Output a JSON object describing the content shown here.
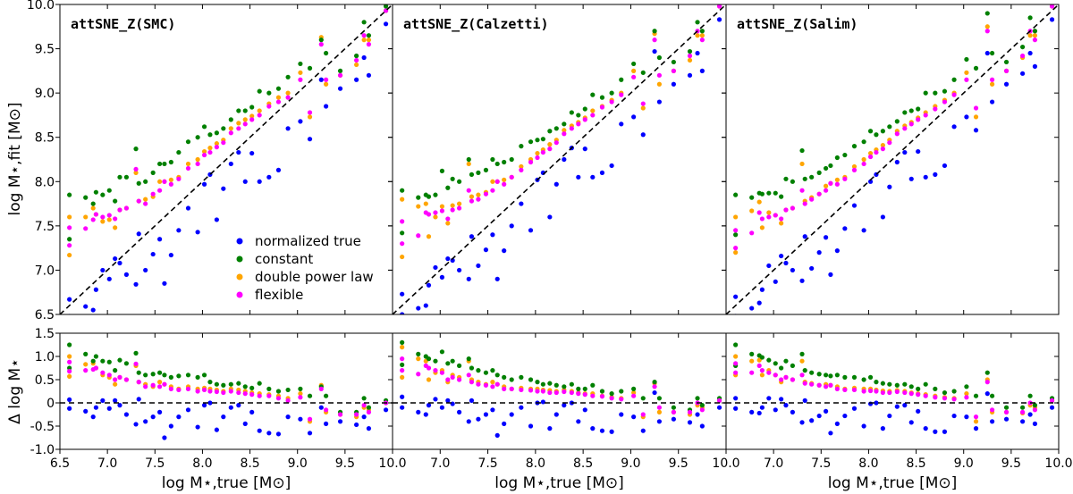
{
  "chart_data": {
    "type": "scatter",
    "xlabel": "log M⋆,true [M⊙]",
    "ylabel_top": "log M⋆,fit [M⊙]",
    "ylabel_bottom": "Δ log M⋆",
    "xlim": [
      6.5,
      10.0
    ],
    "ylim_top": [
      6.5,
      10.0
    ],
    "ylim_bottom": [
      -1.0,
      1.5
    ],
    "xticks": [
      "6.5",
      "7.0",
      "7.5",
      "8.0",
      "8.5",
      "9.0",
      "9.5",
      "10.0"
    ],
    "yticks_top": [
      "6.5",
      "7.0",
      "7.5",
      "8.0",
      "8.5",
      "9.0",
      "9.5",
      "10.0"
    ],
    "yticks_bottom": [
      "-1.0",
      "-0.5",
      "0",
      "0.5",
      "1.0",
      "1.5"
    ],
    "reference_lines": "dashed black: y = x (top), Δ = 0 (bottom)",
    "legend_placement": "lower-right of first panel",
    "colors": {
      "normalized true": "#0000ff",
      "constant": "#008000",
      "double power law": "#ffa500",
      "flexible": "#ff00ff"
    },
    "series_names": [
      "normalized true",
      "constant",
      "double power law",
      "flexible"
    ],
    "x": [
      6.6,
      6.6,
      6.77,
      6.85,
      6.88,
      6.95,
      7.02,
      7.08,
      7.13,
      7.2,
      7.3,
      7.33,
      7.4,
      7.48,
      7.55,
      7.6,
      7.67,
      7.75,
      7.85,
      7.95,
      8.02,
      8.08,
      8.15,
      8.22,
      8.3,
      8.38,
      8.45,
      8.52,
      8.6,
      8.7,
      8.8,
      8.9,
      9.03,
      9.13,
      9.25,
      9.3,
      9.45,
      9.62,
      9.7,
      9.75,
      9.93
    ],
    "panels": [
      {
        "title": "attSNE_Z(SMC)",
        "delta": {
          "normalized true": [
            0.07,
            -0.12,
            -0.18,
            -0.3,
            -0.1,
            0.05,
            -0.12,
            0.05,
            -0.05,
            -0.25,
            -0.46,
            0.08,
            -0.4,
            -0.3,
            -0.2,
            -0.75,
            -0.5,
            -0.3,
            -0.15,
            -0.52,
            -0.05,
            0.0,
            -0.58,
            -0.3,
            -0.1,
            -0.05,
            -0.45,
            -0.2,
            -0.6,
            -0.65,
            -0.67,
            -0.3,
            -0.35,
            -0.65,
            -0.1,
            -0.45,
            -0.4,
            -0.47,
            -0.3,
            -0.55,
            -0.15
          ],
          "constant": [
            1.25,
            0.75,
            1.05,
            0.9,
            1.0,
            0.9,
            0.88,
            0.7,
            0.92,
            0.85,
            1.07,
            0.65,
            0.6,
            0.62,
            0.65,
            0.6,
            0.55,
            0.58,
            0.6,
            0.55,
            0.6,
            0.45,
            0.4,
            0.38,
            0.4,
            0.42,
            0.35,
            0.32,
            0.42,
            0.3,
            0.25,
            0.28,
            0.3,
            0.15,
            0.35,
            0.15,
            -0.2,
            -0.2,
            0.1,
            -0.1,
            0.05
          ],
          "double power law": [
            1.0,
            0.57,
            0.83,
            0.85,
            0.75,
            0.6,
            0.55,
            0.4,
            0.55,
            0.5,
            0.8,
            0.45,
            0.4,
            0.35,
            0.45,
            0.4,
            0.35,
            0.3,
            0.35,
            0.3,
            0.32,
            0.3,
            0.28,
            0.25,
            0.3,
            0.28,
            0.25,
            0.22,
            0.2,
            0.18,
            0.15,
            0.1,
            0.2,
            -0.4,
            0.38,
            -0.2,
            -0.25,
            -0.3,
            -0.1,
            -0.15,
            0.0
          ],
          "flexible": [
            0.88,
            0.68,
            0.7,
            0.72,
            0.75,
            0.65,
            0.6,
            0.5,
            0.55,
            0.5,
            0.84,
            0.45,
            0.35,
            0.38,
            0.35,
            0.4,
            0.3,
            0.28,
            0.3,
            0.25,
            0.28,
            0.25,
            0.24,
            0.22,
            0.25,
            0.22,
            0.2,
            0.18,
            0.15,
            0.15,
            0.1,
            0.05,
            0.12,
            -0.35,
            0.3,
            -0.15,
            -0.25,
            -0.25,
            -0.05,
            -0.2,
            0.0
          ]
        }
      },
      {
        "title": "attSNE_Z(Calzetti)",
        "delta": {
          "normalized true": [
            0.13,
            -0.1,
            -0.2,
            -0.25,
            -0.05,
            0.08,
            -0.1,
            0.05,
            -0.02,
            -0.2,
            -0.4,
            0.05,
            -0.35,
            -0.25,
            -0.15,
            -0.7,
            -0.45,
            -0.25,
            -0.1,
            -0.5,
            0.0,
            0.02,
            -0.55,
            -0.25,
            -0.05,
            0.0,
            -0.4,
            -0.15,
            -0.55,
            -0.6,
            -0.62,
            -0.25,
            -0.3,
            -0.6,
            0.22,
            -0.4,
            -0.35,
            -0.42,
            -0.25,
            -0.5,
            -0.1
          ],
          "constant": [
            1.3,
            0.82,
            1.05,
            1.0,
            0.95,
            0.9,
            1.1,
            0.85,
            0.9,
            0.8,
            0.95,
            0.75,
            0.7,
            0.65,
            0.7,
            0.6,
            0.55,
            0.5,
            0.55,
            0.5,
            0.45,
            0.4,
            0.42,
            0.38,
            0.35,
            0.4,
            0.3,
            0.3,
            0.38,
            0.25,
            0.2,
            0.25,
            0.3,
            0.1,
            0.45,
            0.1,
            -0.1,
            -0.15,
            0.1,
            -0.05,
            0.1
          ],
          "double power law": [
            1.2,
            0.55,
            0.95,
            0.9,
            0.5,
            0.65,
            0.7,
            0.45,
            0.6,
            0.55,
            0.9,
            0.5,
            0.45,
            0.4,
            0.45,
            0.4,
            0.35,
            0.3,
            0.32,
            0.3,
            0.3,
            0.28,
            0.27,
            0.25,
            0.28,
            0.25,
            0.22,
            0.2,
            0.2,
            0.15,
            0.12,
            0.1,
            0.22,
            -0.3,
            0.42,
            -0.2,
            -0.2,
            -0.25,
            -0.05,
            -0.1,
            0.05
          ],
          "flexible": [
            0.95,
            0.7,
            0.62,
            0.8,
            0.75,
            0.7,
            0.65,
            0.5,
            0.55,
            0.5,
            0.6,
            0.45,
            0.4,
            0.38,
            0.35,
            0.4,
            0.3,
            0.3,
            0.28,
            0.27,
            0.25,
            0.25,
            0.22,
            0.22,
            0.24,
            0.22,
            0.2,
            0.18,
            0.15,
            0.14,
            0.1,
            0.08,
            0.15,
            -0.25,
            0.35,
            -0.1,
            -0.2,
            -0.2,
            0.0,
            -0.15,
            0.05
          ]
        }
      },
      {
        "title": "attSNE_Z(Salim)",
        "delta": {
          "normalized true": [
            0.1,
            -0.12,
            -0.2,
            -0.22,
            -0.1,
            0.1,
            -0.15,
            0.08,
            -0.05,
            -0.2,
            -0.42,
            0.05,
            -0.38,
            -0.28,
            -0.18,
            -0.65,
            -0.45,
            -0.28,
            -0.12,
            -0.5,
            -0.02,
            0.0,
            -0.55,
            -0.28,
            -0.08,
            -0.05,
            -0.42,
            -0.18,
            -0.55,
            -0.62,
            -0.62,
            -0.28,
            -0.3,
            -0.55,
            0.2,
            -0.4,
            -0.35,
            -0.4,
            -0.25,
            -0.45,
            -0.1
          ],
          "constant": [
            1.25,
            0.8,
            1.05,
            1.02,
            0.98,
            0.92,
            0.85,
            0.75,
            0.9,
            0.8,
            1.05,
            0.7,
            0.65,
            0.62,
            0.6,
            0.58,
            0.6,
            0.55,
            0.55,
            0.5,
            0.55,
            0.45,
            0.42,
            0.4,
            0.38,
            0.4,
            0.35,
            0.3,
            0.4,
            0.3,
            0.22,
            0.25,
            0.35,
            0.15,
            0.65,
            0.15,
            -0.1,
            -0.1,
            0.15,
            -0.05,
            0.1
          ],
          "double power law": [
            1.0,
            0.6,
            0.9,
            0.92,
            0.6,
            0.7,
            0.6,
            0.45,
            0.55,
            0.5,
            0.9,
            0.45,
            0.42,
            0.38,
            0.4,
            0.38,
            0.35,
            0.3,
            0.32,
            0.3,
            0.3,
            0.28,
            0.26,
            0.25,
            0.27,
            0.25,
            0.22,
            0.2,
            0.18,
            0.15,
            0.12,
            0.1,
            0.2,
            -0.4,
            0.5,
            -0.2,
            -0.2,
            -0.22,
            -0.05,
            -0.1,
            0.05
          ],
          "flexible": [
            0.85,
            0.65,
            0.65,
            0.8,
            0.7,
            0.65,
            0.6,
            0.5,
            0.55,
            0.5,
            0.6,
            0.42,
            0.4,
            0.38,
            0.35,
            0.38,
            0.3,
            0.28,
            0.28,
            0.25,
            0.26,
            0.25,
            0.22,
            0.22,
            0.24,
            0.22,
            0.2,
            0.18,
            0.15,
            0.12,
            0.1,
            0.08,
            0.12,
            -0.3,
            0.45,
            -0.15,
            -0.2,
            -0.2,
            0.0,
            -0.15,
            0.05
          ]
        }
      }
    ]
  }
}
